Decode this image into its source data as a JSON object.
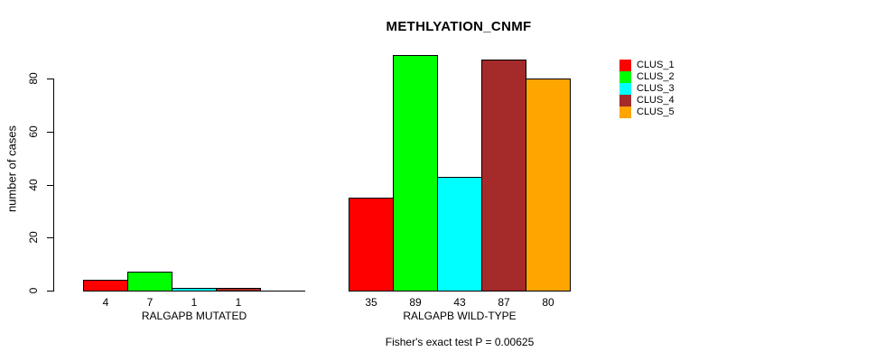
{
  "chart_data": {
    "type": "bar",
    "title": "METHLYATION_CNMF",
    "ylabel": "number of cases",
    "ylim": [
      0,
      94
    ],
    "yticks": [
      "0",
      "20",
      "40",
      "60",
      "80"
    ],
    "grid": false,
    "legend_position": "right",
    "categories": [
      "CLUS_1",
      "CLUS_2",
      "CLUS_3",
      "CLUS_4",
      "CLUS_5"
    ],
    "colors": [
      "#ff0000",
      "#00ff00",
      "#00ffff",
      "#a52a2a",
      "#ffa500"
    ],
    "groups": [
      {
        "label": "RALGAPB MUTATED",
        "values": [
          4,
          7,
          1,
          1,
          0
        ],
        "bar_labels": [
          "4",
          "7",
          "1",
          "1",
          ""
        ]
      },
      {
        "label": "RALGAPB WILD-TYPE",
        "values": [
          35,
          89,
          43,
          87,
          80
        ],
        "bar_labels": [
          "35",
          "89",
          "43",
          "87",
          "80"
        ]
      }
    ],
    "annotation": "Fisher's exact test P = 0.00625"
  }
}
